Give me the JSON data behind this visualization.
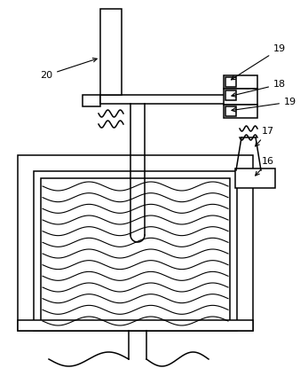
{
  "bg_color": "#ffffff",
  "line_color": "#000000",
  "fig_w": 3.47,
  "fig_h": 4.24,
  "dpi": 100
}
